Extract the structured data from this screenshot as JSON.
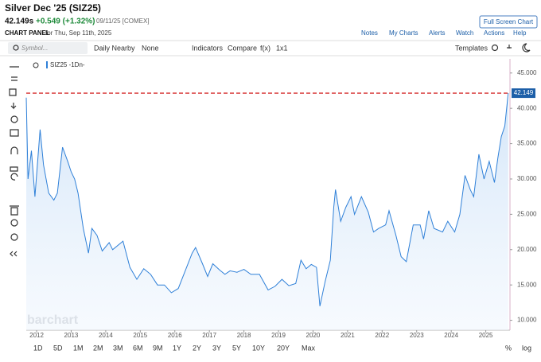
{
  "header": {
    "title": "Silver Dec '25 (SIZ25)",
    "price": "42.149s",
    "change": "+0.549 (+1.32%)",
    "date_exchange": "09/11/25 [COMEX]",
    "panel_label": "CHART PANEL",
    "panel_date": "for Thu, Sep 11th, 2025",
    "full_screen": "Full Screen Chart",
    "links": [
      "Notes",
      "My Charts",
      "Alerts",
      "Watch",
      "Actions",
      "Help"
    ]
  },
  "toolbar": {
    "symbol_placeholder": "Symbol...",
    "items": [
      "Daily Nearby",
      "None",
      "Indicators",
      "Compare",
      "f(x)",
      "1x1"
    ],
    "templates": "Templates"
  },
  "ranges": [
    "1D",
    "5D",
    "1M",
    "2M",
    "3M",
    "6M",
    "9M",
    "1Y",
    "2Y",
    "3Y",
    "5Y",
    "10Y",
    "20Y",
    "Max"
  ],
  "scale_options": [
    "%",
    "log"
  ],
  "watermark": "barchart",
  "chart_data": {
    "type": "line",
    "grid": false,
    "x": [
      2011.7,
      2011.75,
      2011.85,
      2011.95,
      2012.1,
      2012.2,
      2012.35,
      2012.5,
      2012.6,
      2012.75,
      2012.9,
      2013.0,
      2013.1,
      2013.2,
      2013.35,
      2013.5,
      2013.6,
      2013.75,
      2013.9,
      2014.1,
      2014.2,
      2014.5,
      2014.7,
      2014.9,
      2015.1,
      2015.3,
      2015.5,
      2015.7,
      2015.9,
      2016.1,
      2016.3,
      2016.5,
      2016.6,
      2016.8,
      2016.95,
      2017.1,
      2017.3,
      2017.45,
      2017.6,
      2017.8,
      2018.0,
      2018.2,
      2018.45,
      2018.7,
      2018.9,
      2019.1,
      2019.3,
      2019.5,
      2019.65,
      2019.8,
      2019.95,
      2020.1,
      2020.2,
      2020.35,
      2020.5,
      2020.6,
      2020.65,
      2020.8,
      2020.95,
      2021.1,
      2021.2,
      2021.4,
      2021.6,
      2021.75,
      2021.9,
      2022.1,
      2022.2,
      2022.4,
      2022.55,
      2022.7,
      2022.9,
      2023.1,
      2023.2,
      2023.35,
      2023.5,
      2023.75,
      2023.9,
      2024.1,
      2024.25,
      2024.4,
      2024.55,
      2024.65,
      2024.8,
      2024.95,
      2025.1,
      2025.25,
      2025.35,
      2025.45,
      2025.55,
      2025.65
    ],
    "series": [
      {
        "name": "SIZ25 -1Dn-",
        "color": "#2f80d8",
        "values": [
          41.5,
          30,
          34,
          27.5,
          37,
          32,
          28,
          27,
          28,
          34.5,
          32.5,
          31,
          30,
          28,
          23,
          19.5,
          23,
          22,
          19.8,
          21,
          20,
          21.2,
          17.5,
          15.8,
          17.3,
          16.5,
          15,
          15,
          13.9,
          14.5,
          17,
          19.5,
          20.3,
          18,
          16.2,
          18,
          17.1,
          16.5,
          17,
          16.8,
          17.2,
          16.5,
          16.5,
          14.3,
          14.8,
          15.8,
          14.9,
          15.2,
          18.5,
          17.3,
          17.9,
          17.5,
          12.0,
          15.5,
          18.5,
          26,
          28.5,
          24,
          26,
          27.5,
          25,
          27.5,
          25.3,
          22.5,
          23,
          23.5,
          25.5,
          22,
          19,
          18.3,
          23.5,
          23.5,
          21.5,
          25.5,
          23,
          22.5,
          24,
          22.5,
          25,
          30.5,
          28.5,
          27.5,
          33.5,
          30,
          32.5,
          29.5,
          33,
          36,
          37.5,
          42.149
        ]
      }
    ],
    "xlim": [
      2011.7,
      2025.7
    ],
    "xticks": [
      2012,
      2013,
      2014,
      2015,
      2016,
      2017,
      2018,
      2019,
      2020,
      2021,
      2022,
      2023,
      2024,
      2025
    ],
    "ylim": [
      8.6,
      46.1
    ],
    "yticks": [
      {
        "value": 10,
        "label": "10.000"
      },
      {
        "value": 15,
        "label": "15.000"
      },
      {
        "value": 20,
        "label": "20.000"
      },
      {
        "value": 25,
        "label": "25.000"
      },
      {
        "value": 30,
        "label": "30.000"
      },
      {
        "value": 35,
        "label": "35.000"
      },
      {
        "value": 40,
        "label": "40.000"
      },
      {
        "value": 45,
        "label": "45.000"
      }
    ]
  }
}
